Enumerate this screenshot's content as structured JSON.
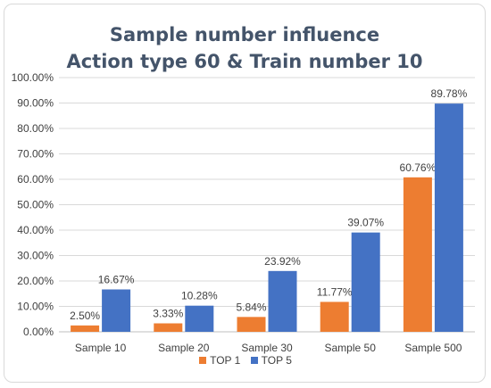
{
  "chart_data": {
    "type": "bar",
    "title": "Sample number influence",
    "subtitle": "Action type 60 & Train number 10",
    "categories": [
      "Sample  10",
      "Sample  20",
      "Sample  30",
      "Sample  50",
      "Sample  500"
    ],
    "series": [
      {
        "name": "TOP 1",
        "color": "#ed7d31",
        "values": [
          2.5,
          3.33,
          5.84,
          11.77,
          60.76
        ],
        "labels": [
          "2.50%",
          "3.33%",
          "5.84%",
          "11.77%",
          "60.76%"
        ]
      },
      {
        "name": "TOP 5",
        "color": "#4472c4",
        "values": [
          16.67,
          10.28,
          23.92,
          39.07,
          89.78
        ],
        "labels": [
          "16.67%",
          "10.28%",
          "23.92%",
          "39.07%",
          "89.78%"
        ]
      }
    ],
    "ylim": [
      0,
      100
    ],
    "yticks": [
      "0.00%",
      "10.00%",
      "20.00%",
      "30.00%",
      "40.00%",
      "50.00%",
      "60.00%",
      "70.00%",
      "80.00%",
      "90.00%",
      "100.00%"
    ],
    "grid": true,
    "legend_position": "bottom"
  }
}
